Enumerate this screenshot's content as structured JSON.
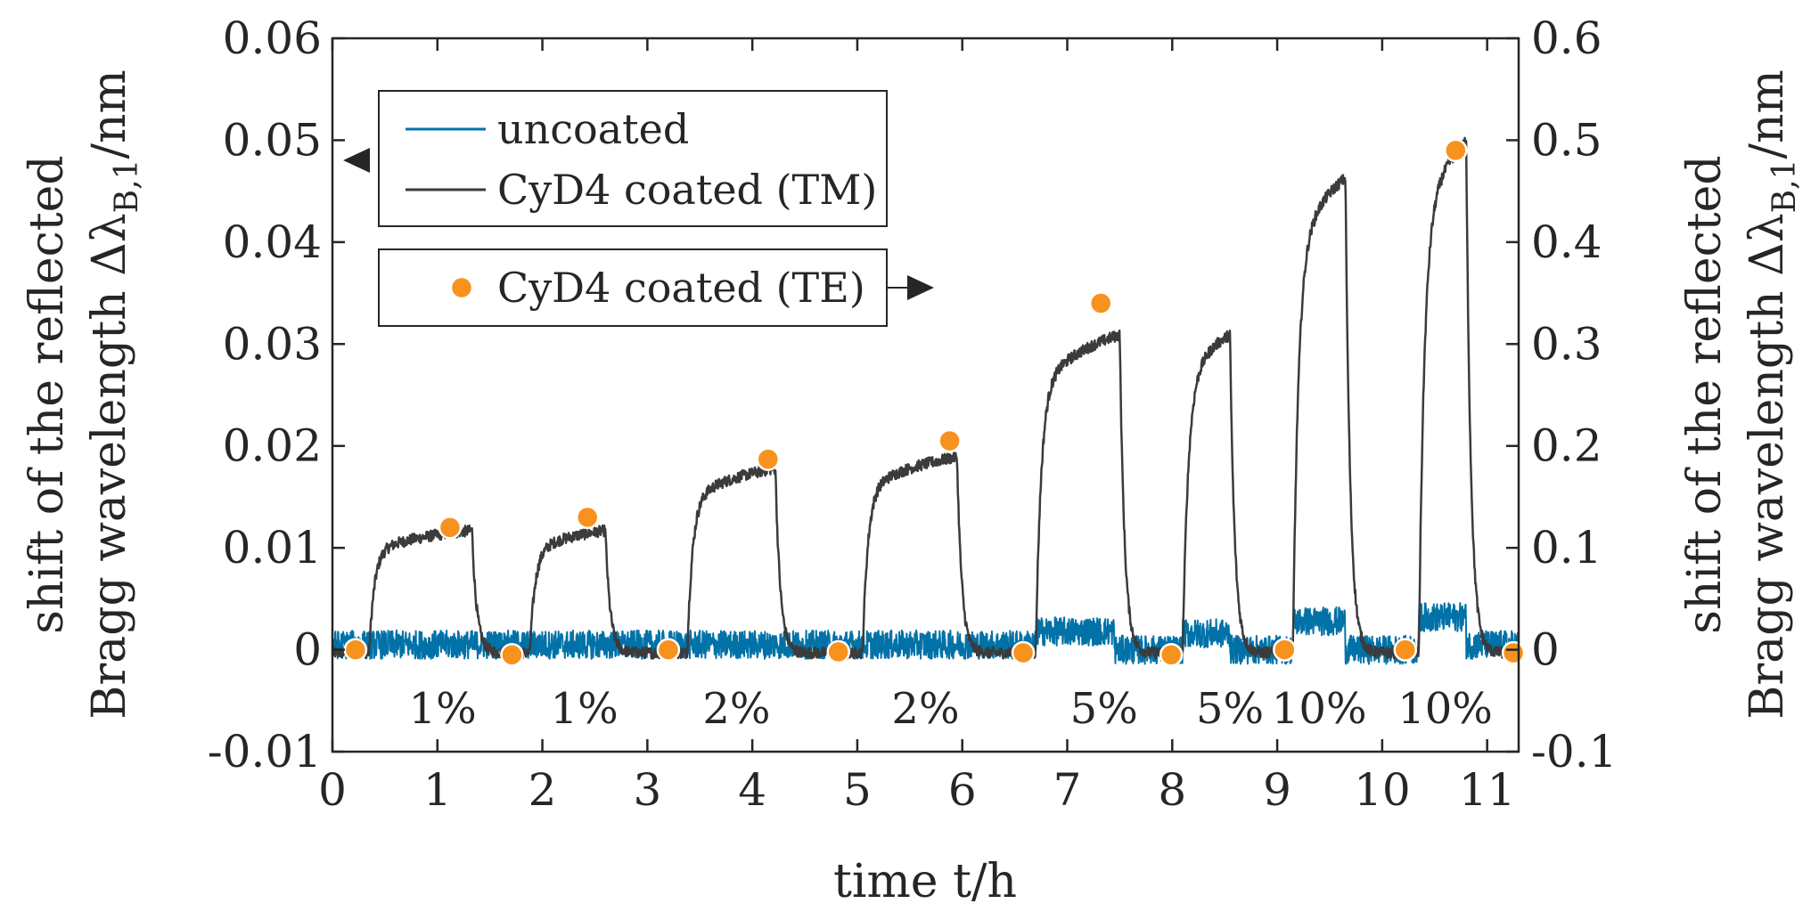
{
  "chart_data": {
    "type": "line",
    "xlabel": "time t/h",
    "ylabel_left": {
      "prefix": "shift of the reflected",
      "main": "Bragg wavelength Δλ",
      "subscript": "B,1",
      "unit": "/nm"
    },
    "ylabel_right": {
      "prefix": "shift of the reflected",
      "main": "Bragg wavelength Δλ",
      "subscript": "B,1",
      "unit": "/nm"
    },
    "xlim": [
      0,
      11.3
    ],
    "ylim_left": [
      -0.01,
      0.06
    ],
    "ylim_right": [
      -0.1,
      0.6
    ],
    "x_ticks": [
      0,
      1,
      2,
      3,
      4,
      5,
      6,
      7,
      8,
      9,
      10,
      11
    ],
    "x_tick_labels": [
      "0",
      "1",
      "2",
      "3",
      "4",
      "5",
      "6",
      "7",
      "8",
      "9",
      "10",
      "11"
    ],
    "y_ticks_left": [
      -0.01,
      0,
      0.01,
      0.02,
      0.03,
      0.04,
      0.05,
      0.06
    ],
    "y_tick_labels_left": [
      "-0.01",
      "0",
      "0.01",
      "0.02",
      "0.03",
      "0.04",
      "0.05",
      "0.06"
    ],
    "y_ticks_right": [
      -0.1,
      0,
      0.1,
      0.2,
      0.3,
      0.4,
      0.5,
      0.6
    ],
    "y_tick_labels_right": [
      "-0.1",
      "0",
      "0.1",
      "0.2",
      "0.3",
      "0.4",
      "0.5",
      "0.6"
    ],
    "grid": false,
    "legend": {
      "top_entries": [
        "uncoated",
        "CyD4 coated (TM)"
      ],
      "bottom_entries": [
        "CyD4 coated (TE)"
      ],
      "placement": "top-left"
    },
    "colors": {
      "uncoated": "#0072a8",
      "tm": "#3b3b3b",
      "te": "#f7921e",
      "axis": "#262626"
    },
    "pulses": [
      {
        "start": 0.35,
        "end": 1.33,
        "level": 0.0128,
        "label": "1%",
        "label_x": 1.05
      },
      {
        "start": 1.88,
        "end": 2.6,
        "level": 0.0128,
        "label": "1%",
        "label_x": 2.4
      },
      {
        "start": 3.38,
        "end": 4.22,
        "level": 0.0193,
        "label": "2%",
        "label_x": 3.85
      },
      {
        "start": 5.05,
        "end": 5.95,
        "level": 0.0205,
        "label": "2%",
        "label_x": 5.65
      },
      {
        "start": 6.7,
        "end": 7.5,
        "level": 0.0333,
        "label": "5%",
        "label_x": 7.35
      },
      {
        "start": 8.1,
        "end": 8.55,
        "level": 0.0333,
        "label": "5%",
        "label_x": 8.55
      },
      {
        "start": 9.15,
        "end": 9.65,
        "level": 0.0497,
        "label": "10%",
        "label_x": 9.4
      },
      {
        "start": 10.35,
        "end": 10.8,
        "level": 0.0535,
        "label": "10%",
        "label_x": 10.6
      }
    ],
    "uncoated_baseline": [
      {
        "start": 0.0,
        "end": 6.7,
        "level": 0.0005
      },
      {
        "start": 6.7,
        "end": 7.45,
        "level": 0.0018
      },
      {
        "start": 7.45,
        "end": 8.1,
        "level": 0.0
      },
      {
        "start": 8.1,
        "end": 8.55,
        "level": 0.0016
      },
      {
        "start": 8.55,
        "end": 9.15,
        "level": 0.0
      },
      {
        "start": 9.15,
        "end": 9.65,
        "level": 0.0028
      },
      {
        "start": 9.65,
        "end": 10.35,
        "level": 0.0
      },
      {
        "start": 10.35,
        "end": 10.8,
        "level": 0.0032
      },
      {
        "start": 10.8,
        "end": 11.3,
        "level": 0.0005
      }
    ],
    "series": [
      {
        "name": "CyD4 coated (TE)",
        "axis": "right",
        "x": [
          0.22,
          1.12,
          1.71,
          2.43,
          3.2,
          4.15,
          4.82,
          5.88,
          6.58,
          7.32,
          7.99,
          9.07,
          10.22,
          10.7,
          11.25
        ],
        "values": [
          0.0,
          0.12,
          -0.005,
          0.13,
          0.0,
          0.187,
          -0.002,
          0.205,
          -0.003,
          0.34,
          -0.005,
          0.0,
          0.0,
          0.49,
          -0.003
        ]
      }
    ]
  }
}
